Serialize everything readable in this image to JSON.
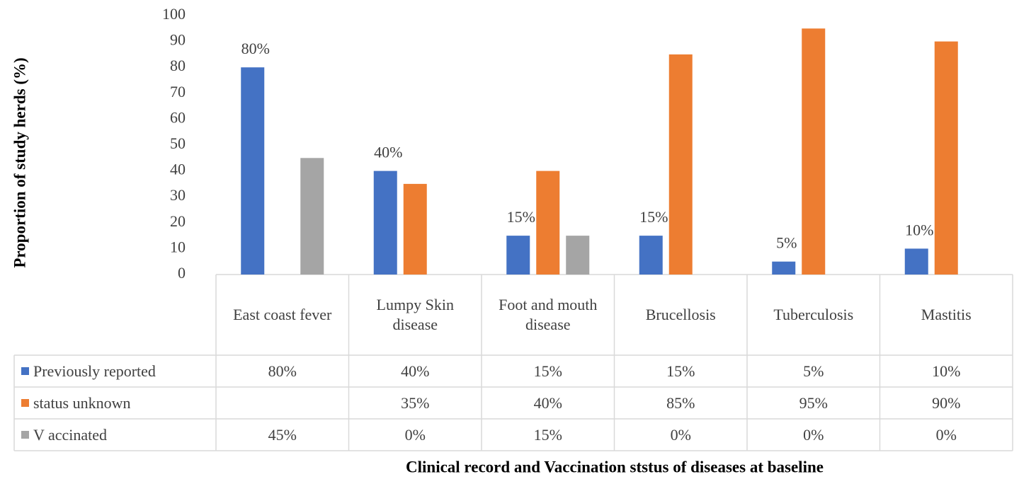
{
  "chart_data": {
    "type": "bar",
    "y_label": "Proportion of study herds (%)",
    "x_label": "Clinical record and Vaccination ststus of diseases at baseline",
    "categories": [
      "East coast fever",
      "Lumpy Skin disease",
      "Foot and mouth disease",
      "Brucellosis",
      "Tuberculosis",
      "Mastitis"
    ],
    "series": [
      {
        "name": "Previously reported",
        "color": "#4472c4",
        "values": [
          80,
          40,
          15,
          15,
          5,
          10
        ],
        "value_labels": [
          "80%",
          "40%",
          "15%",
          "15%",
          "5%",
          "10%"
        ],
        "data_labels": true
      },
      {
        "name": "status unknown",
        "color": "#ed7d31",
        "values": [
          null,
          35,
          40,
          85,
          95,
          90
        ],
        "value_labels": [
          null,
          "35%",
          "40%",
          "85%",
          "95%",
          "90%"
        ],
        "data_labels": false
      },
      {
        "name": "V accinated",
        "color": "#a5a5a5",
        "values": [
          45,
          0,
          15,
          0,
          0,
          0
        ],
        "value_labels": [
          "45%",
          "0%",
          "15%",
          "0%",
          "0%",
          "0%"
        ],
        "data_labels": false
      }
    ],
    "ylim": [
      0,
      100
    ],
    "yticks": [
      0,
      10,
      20,
      30,
      40,
      50,
      60,
      70,
      80,
      90,
      100
    ],
    "grid": false
  }
}
